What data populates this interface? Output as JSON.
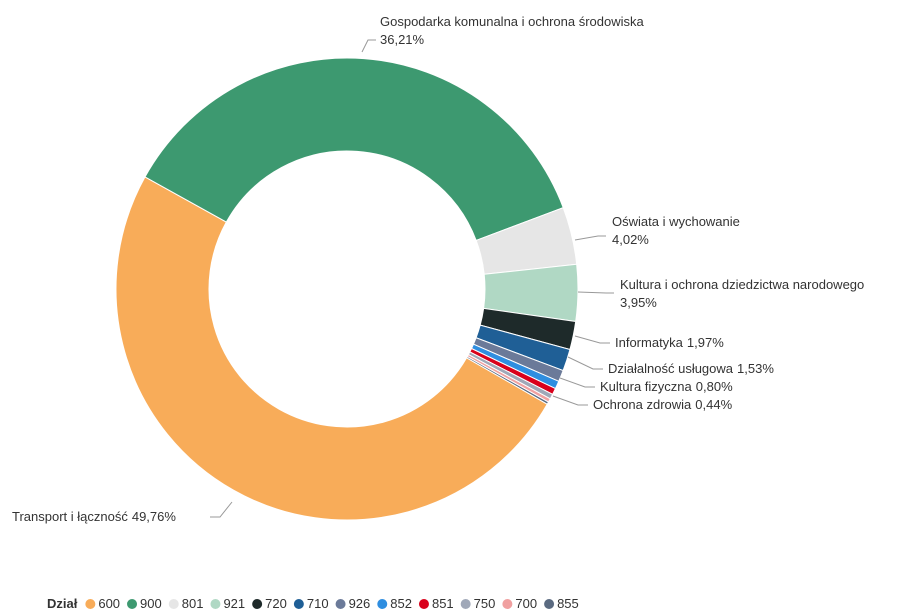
{
  "chart_data": {
    "type": "donut",
    "legend_title": "Dział",
    "categories": [
      "600",
      "900",
      "801",
      "921",
      "720",
      "710",
      "926",
      "852",
      "851",
      "750",
      "700",
      "855"
    ],
    "labels": [
      "Transport i łączność",
      "Gospodarka komunalna i ochrona środowiska",
      "Oświata i wychowanie",
      "Kultura i ochrona dziedzictwa narodowego",
      "Informatyka",
      "Działalność usługowa",
      "Kultura fizyczna",
      null,
      "Ochrona zdrowia",
      null,
      null,
      null
    ],
    "values": [
      49.76,
      36.21,
      4.02,
      3.95,
      1.97,
      1.53,
      0.8,
      0.55,
      0.44,
      0.35,
      0.25,
      0.17
    ],
    "value_labels": [
      "49,76%",
      "36,21%",
      "4,02%",
      "3,95%",
      "1,97%",
      "1,53%",
      "0,80%",
      null,
      "0,44%",
      null,
      null,
      null
    ],
    "colors": [
      "#f8ac59",
      "#3d9970",
      "#e6e6e6",
      "#b0d8c4",
      "#1e2a2a",
      "#1f5f96",
      "#6b7a99",
      "#2f8ee0",
      "#d9001b",
      "#a0a8b8",
      "#f0a0a0",
      "#5a6a80"
    ],
    "legend": "bottom-left"
  }
}
